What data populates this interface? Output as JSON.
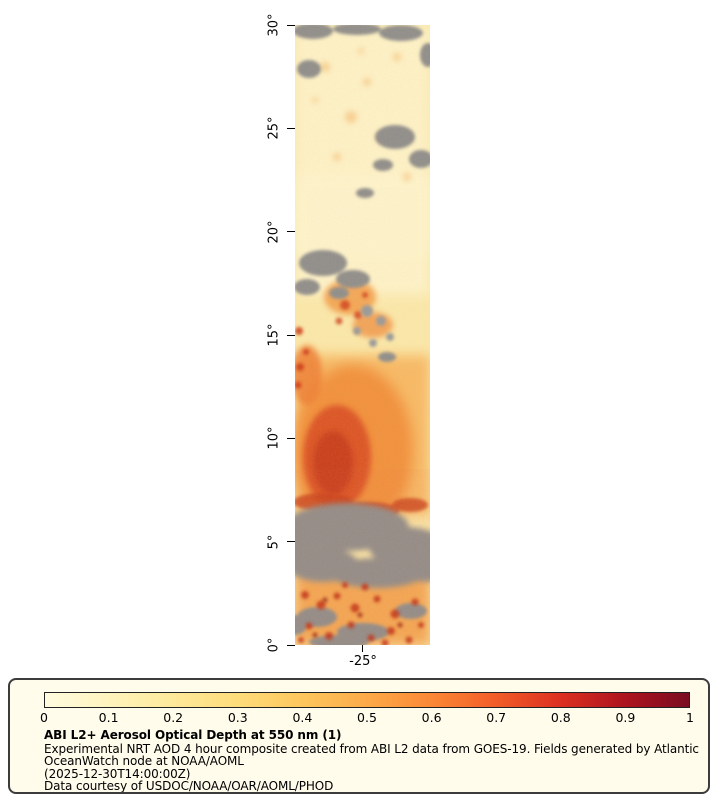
{
  "chart_data": {
    "type": "heatmap",
    "title": "ABI L2+ Aerosol Optical Depth at 550 nm (1)",
    "y_axis": {
      "ticks": [
        "30°",
        "25°",
        "20°",
        "15°",
        "10°",
        "5°",
        "0°"
      ],
      "range_deg": [
        0,
        30
      ]
    },
    "x_axis": {
      "ticks": [
        "-25°"
      ]
    },
    "colorbar": {
      "ticks": [
        "0",
        "0.1",
        "0.2",
        "0.3",
        "0.4",
        "0.5",
        "0.6",
        "0.7",
        "0.8",
        "0.9",
        "1"
      ],
      "range": [
        0,
        1
      ],
      "colors": [
        "#fffbe0",
        "#fff3bd",
        "#fee99a",
        "#fedc7a",
        "#fdc65d",
        "#fcaa49",
        "#fb8836",
        "#f25c28",
        "#dc3020",
        "#ad141f",
        "#7a0c22"
      ],
      "nodata_color": "#8d8d8d"
    },
    "legend_position": "bottom"
  },
  "legend": {
    "title": "ABI L2+ Aerosol Optical Depth at 550 nm (1)",
    "description": "Experimental NRT AOD 4 hour composite created from ABI L2 data from GOES-19. Fields generated by Atlantic OceanWatch node at NOAA/AOML",
    "timestamp": "(2025-12-30T14:00:00Z)",
    "credit": "Data courtesy of USDOC/NOAA/OAR/AOML/PHOD"
  }
}
